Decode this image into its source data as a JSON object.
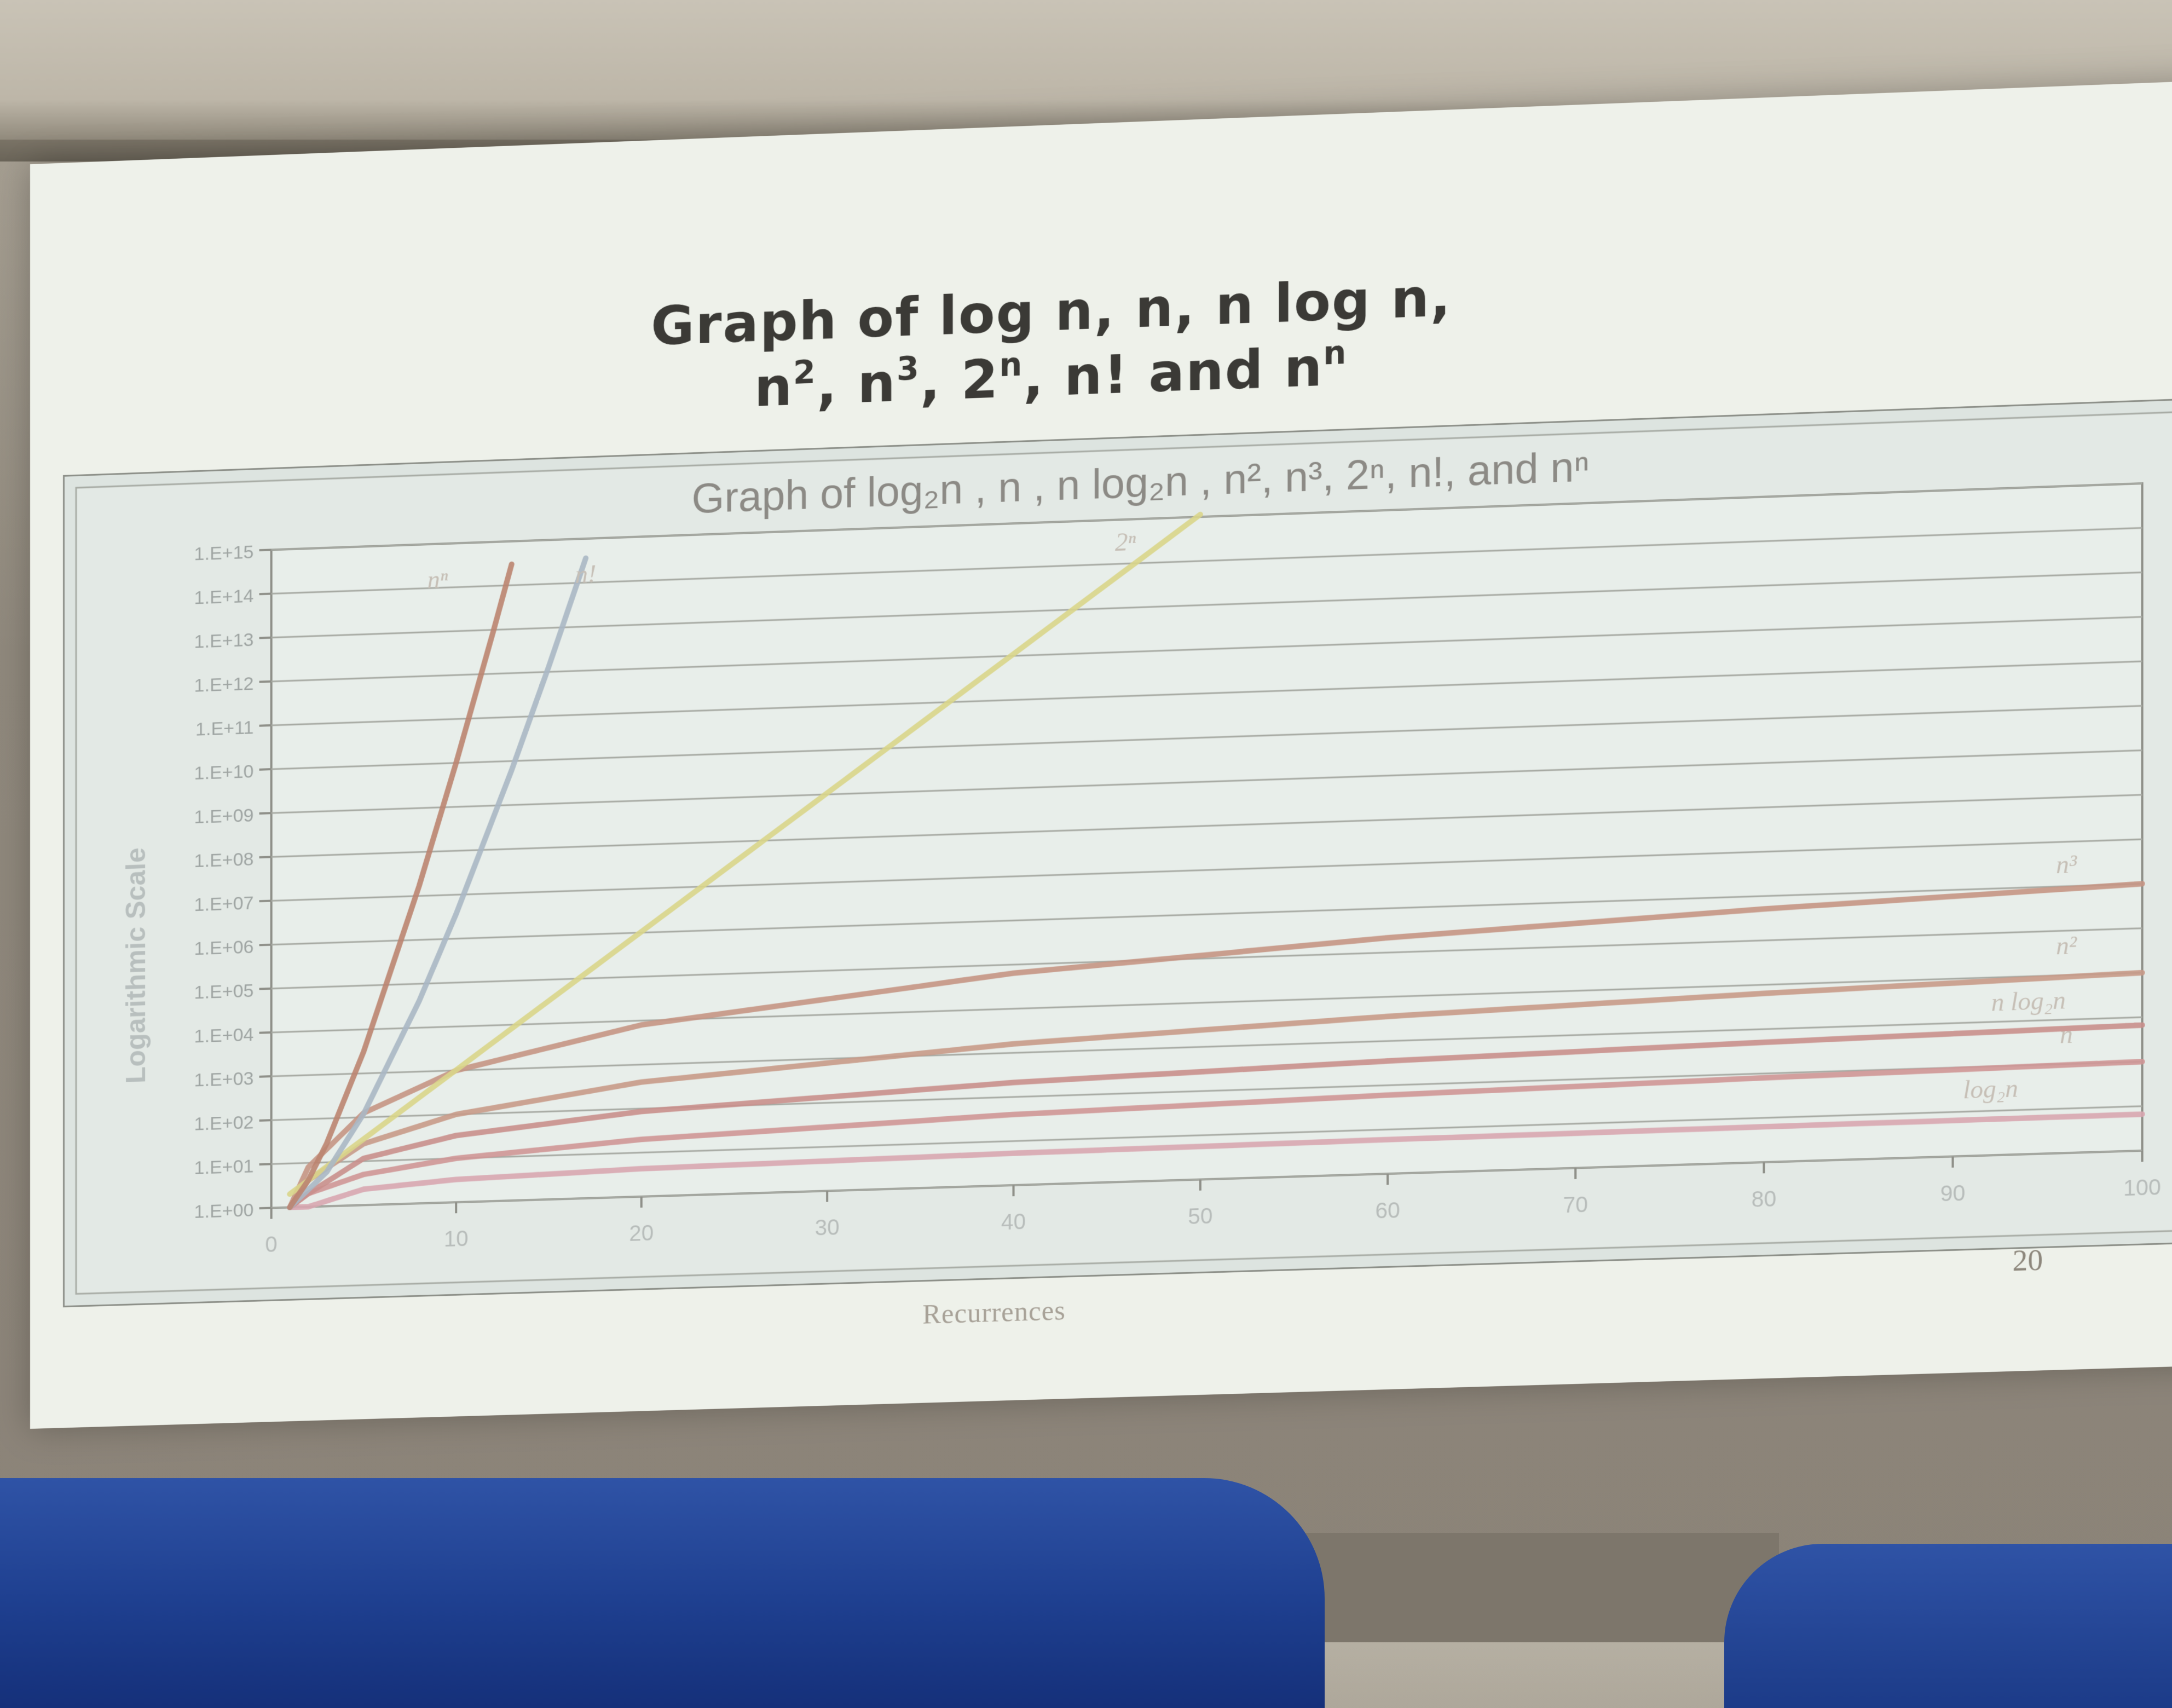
{
  "slide": {
    "title_line1": "Graph of log n, n, n log n,",
    "title_line2_parts": [
      "n",
      "2",
      ", n",
      "3",
      ", 2",
      "n",
      ", n! and n",
      "n"
    ],
    "footer_left": "Recurrences",
    "footer_right": "20"
  },
  "chart_data": {
    "type": "line",
    "title": "Graph of log₂n , n , n log₂n , n², n³, 2ⁿ, n!, and nⁿ",
    "xlabel": "",
    "ylabel": "Logarithmic Scale",
    "y_scale": "log",
    "xlim": [
      0,
      100
    ],
    "ylim": [
      1,
      1000000000000000.0
    ],
    "grid": true,
    "x_ticks": [
      "0",
      "10",
      "20",
      "30",
      "40",
      "50",
      "60",
      "70",
      "80",
      "90",
      "100"
    ],
    "y_ticks": [
      "1.E+00",
      "1.E+01",
      "1.E+02",
      "1.E+03",
      "1.E+04",
      "1.E+05",
      "1.E+06",
      "1.E+07",
      "1.E+08",
      "1.E+09",
      "1.E+10",
      "1.E+11",
      "1.E+12",
      "1.E+13",
      "1.E+14",
      "1.E+15"
    ],
    "series": [
      {
        "name": "log₂n",
        "color": "#d8a6b0",
        "x": [
          1,
          2,
          5,
          10,
          20,
          40,
          60,
          80,
          100
        ],
        "y": [
          1,
          1,
          2.3,
          3.3,
          4.3,
          5.3,
          5.9,
          6.3,
          6.6
        ]
      },
      {
        "name": "n",
        "color": "#cf9696",
        "x": [
          1,
          2,
          5,
          10,
          20,
          40,
          60,
          80,
          100
        ],
        "y": [
          1,
          2,
          5,
          10,
          20,
          40,
          60,
          80,
          100
        ]
      },
      {
        "name": "n log₂n",
        "color": "#c98f8c",
        "x": [
          1,
          2,
          5,
          10,
          20,
          40,
          60,
          80,
          100
        ],
        "y": [
          1,
          2,
          11.6,
          33,
          86,
          213,
          354,
          506,
          664
        ]
      },
      {
        "name": "n²",
        "color": "#c89a88",
        "x": [
          1,
          2,
          5,
          10,
          20,
          40,
          60,
          80,
          100
        ],
        "y": [
          1,
          4,
          25,
          100,
          400,
          1600,
          3600,
          6400,
          10000
        ]
      },
      {
        "name": "n³",
        "color": "#c59584",
        "x": [
          1,
          2,
          5,
          10,
          20,
          40,
          60,
          80,
          100
        ],
        "y": [
          1,
          8,
          125,
          1000,
          8000,
          64000,
          216000,
          512000,
          1000000
        ]
      },
      {
        "name": "2ⁿ",
        "color": "#d9d58a",
        "x": [
          1,
          5,
          10,
          20,
          30,
          40,
          50
        ],
        "y": [
          2,
          32,
          1024,
          1048576,
          1073741824,
          1100000000000.0,
          1130000000000000.0
        ]
      },
      {
        "name": "n!",
        "color": "#aab7c4",
        "x": [
          1,
          3,
          5,
          8,
          10,
          13,
          15,
          17
        ],
        "y": [
          1,
          6,
          120,
          40320,
          3628800,
          6200000000.0,
          1300000000000.0,
          360000000000000.0
        ]
      },
      {
        "name": "nⁿ",
        "color": "#bb8470",
        "x": [
          1,
          2,
          3,
          5,
          8,
          10,
          12,
          13
        ],
        "y": [
          1,
          4,
          27,
          3125,
          16777216,
          10000000000.0,
          8900000000000.0,
          300000000000000.0
        ]
      }
    ],
    "curve_labels": [
      {
        "text": "nⁿ",
        "at_x": 9,
        "at_y": 100000000000000.0
      },
      {
        "text": "n!",
        "at_x": 17,
        "at_y": 100000000000000.0
      },
      {
        "text": "2ⁿ",
        "at_x": 46,
        "at_y": 200000000000000.0
      },
      {
        "text": "n³",
        "at_x": 96,
        "at_y": 2000000.0
      },
      {
        "text": "n²",
        "at_x": 96,
        "at_y": 30000.0
      },
      {
        "text": "n log₂n",
        "at_x": 94,
        "at_y": 1800
      },
      {
        "text": "n",
        "at_x": 96,
        "at_y": 300
      },
      {
        "text": "log₂n",
        "at_x": 92,
        "at_y": 20
      }
    ]
  }
}
